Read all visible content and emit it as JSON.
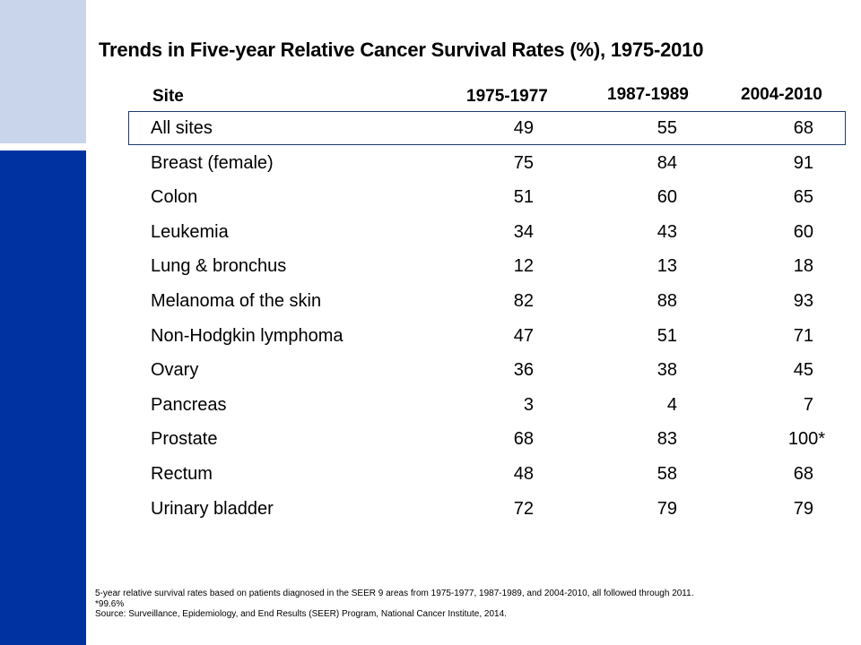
{
  "title": "Trends in Five-year Relative Cancer Survival Rates (%), 1975-2010",
  "columns": {
    "site": "Site",
    "p1": "1975-1977",
    "p2": "1987-1989",
    "p3": "2004-2010"
  },
  "rows": [
    {
      "site": "All sites",
      "v1": "49",
      "v2": "55",
      "v3": "68"
    },
    {
      "site": "Breast (female)",
      "v1": "75",
      "v2": "84",
      "v3": "91"
    },
    {
      "site": "Colon",
      "v1": "51",
      "v2": "60",
      "v3": "65"
    },
    {
      "site": "Leukemia",
      "v1": "34",
      "v2": "43",
      "v3": "60"
    },
    {
      "site": "Lung & bronchus",
      "v1": "12",
      "v2": "13",
      "v3": "18"
    },
    {
      "site": "Melanoma of the skin",
      "v1": "82",
      "v2": "88",
      "v3": "93"
    },
    {
      "site": "Non-Hodgkin lymphoma",
      "v1": "47",
      "v2": "51",
      "v3": "71"
    },
    {
      "site": "Ovary",
      "v1": "36",
      "v2": "38",
      "v3": "45"
    },
    {
      "site": "Pancreas",
      "v1": "3",
      "v2": "4",
      "v3": "7"
    },
    {
      "site": "Prostate",
      "v1": "68",
      "v2": "83",
      "v3": "100*"
    },
    {
      "site": "Rectum",
      "v1": "48",
      "v2": "58",
      "v3": "68"
    },
    {
      "site": "Urinary bladder",
      "v1": "72",
      "v2": "79",
      "v3": "79"
    }
  ],
  "footnotes": {
    "note": "5-year relative survival rates based on patients diagnosed in the SEER 9 areas from 1975-1977, 1987-1989, and 2004-2010, all followed through 2011.",
    "asterisk": "*99.6%",
    "source": "Source: Surveillance, Epidemiology, and End Results (SEER) Program, National Cancer Institute, 2014."
  },
  "colors": {
    "sidebar_dark": "#0033a1",
    "sidebar_light": "#c9d5ea",
    "highlight_border": "#1f3a6e"
  }
}
